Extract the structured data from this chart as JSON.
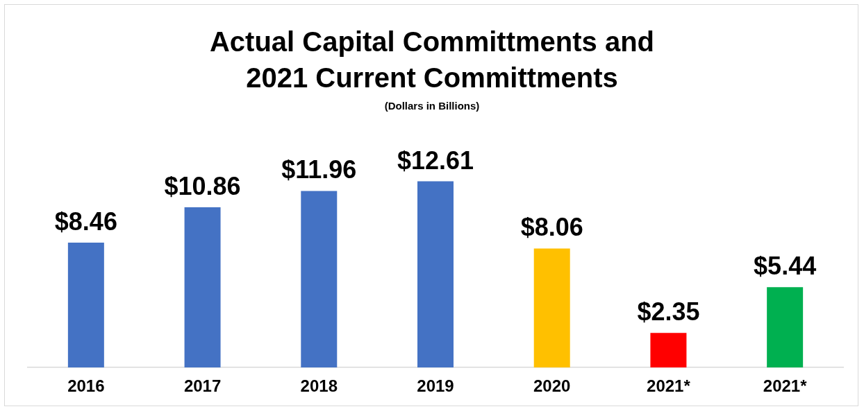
{
  "chart_data": {
    "type": "bar",
    "title": "Actual Capital Committments and 2021 Current Committments",
    "subtitle": "(Dollars in Billions)",
    "categories": [
      "2016",
      "2017",
      "2018",
      "2019",
      "2020",
      "2021*",
      "2021*"
    ],
    "values": [
      8.46,
      10.86,
      11.96,
      12.61,
      8.06,
      2.35,
      5.44
    ],
    "colors": [
      "#4472c4",
      "#4472c4",
      "#4472c4",
      "#4472c4",
      "#ffc000",
      "#ff0000",
      "#00b050"
    ],
    "value_labels": [
      "$8.46",
      "$10.86",
      "$11.96",
      "$12.61",
      "$8.06",
      "$2.35",
      "$5.44"
    ],
    "grid": false,
    "legend": false
  }
}
